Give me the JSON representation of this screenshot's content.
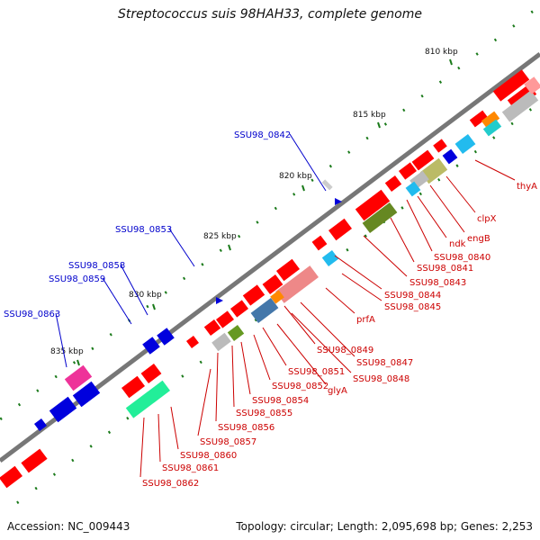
{
  "title": "Streptococcus suis 98HAH33, complete genome",
  "footer": {
    "accession": "Accession: NC_009443",
    "summary": "Topology: circular; Length: 2,095,698 bp; Genes: 2,253"
  },
  "colors": {
    "backbone": "#777777",
    "gene_red": "#ff0000",
    "gene_blue": "#0000dd",
    "tick_green": "#1a7a1a",
    "label_red": "#cc0000",
    "label_blue": "#0000cc"
  },
  "kbp_ticks": [
    "810 kbp",
    "815 kbp",
    "820 kbp",
    "825 kbp",
    "830 kbp",
    "835 kbp"
  ],
  "blue_labels": [
    "SSU98_0842",
    "SSU98_0853",
    "SSU98_0858",
    "SSU98_0859",
    "SSU98_0863"
  ],
  "red_labels": [
    "thyA",
    "clpX",
    "engB",
    "ndk",
    "SSU98_0840",
    "SSU98_0841",
    "SSU98_0843",
    "SSU98_0844",
    "SSU98_0845",
    "prfA",
    "SSU98_0849",
    "SSU98_0847",
    "SSU98_0848",
    "glyA",
    "SSU98_0851",
    "SSU98_0852",
    "SSU98_0854",
    "SSU98_0855",
    "SSU98_0856",
    "SSU98_0857",
    "SSU98_0860",
    "SSU98_0861",
    "SSU98_0862"
  ]
}
